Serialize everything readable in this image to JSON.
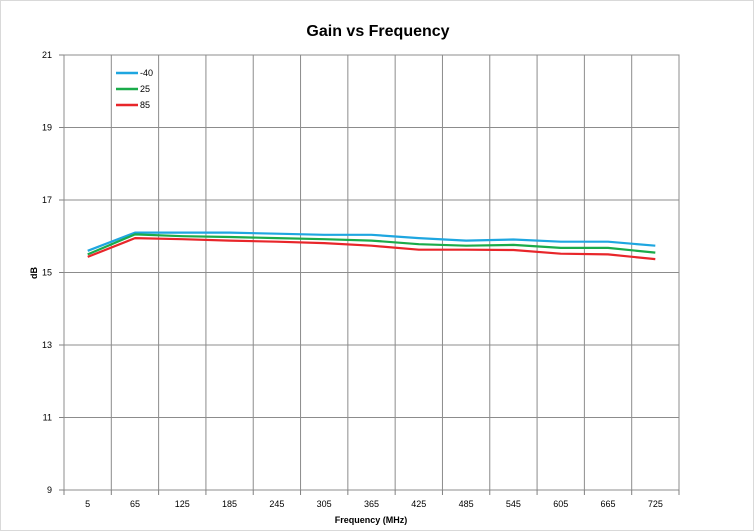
{
  "chart_data": {
    "type": "line",
    "title": "Gain vs Frequency",
    "xlabel": "Frequency (MHz)",
    "ylabel": "dB",
    "x": [
      5,
      65,
      125,
      185,
      245,
      305,
      365,
      425,
      485,
      545,
      605,
      665,
      725
    ],
    "x_tick_labels": [
      "5",
      "65",
      "125",
      "185",
      "245",
      "305",
      "365",
      "425",
      "485",
      "545",
      "605",
      "665",
      "725"
    ],
    "ylim": [
      9,
      21
    ],
    "y_ticks": [
      9,
      11,
      13,
      15,
      17,
      19,
      21
    ],
    "y_tick_labels": [
      "9",
      "11",
      "13",
      "15",
      "17",
      "19",
      "21"
    ],
    "grid": true,
    "legend_position": "top-left",
    "series": [
      {
        "name": "-40",
        "color": "#1ea6e0",
        "values": [
          15.6,
          16.1,
          16.1,
          16.1,
          16.07,
          16.04,
          16.04,
          15.95,
          15.88,
          15.91,
          15.85,
          15.85,
          15.74
        ]
      },
      {
        "name": "25",
        "color": "#1aab4a",
        "values": [
          15.5,
          16.05,
          16.0,
          15.98,
          15.95,
          15.92,
          15.88,
          15.78,
          15.74,
          15.76,
          15.68,
          15.68,
          15.55
        ]
      },
      {
        "name": "85",
        "color": "#e8262a",
        "values": [
          15.43,
          15.95,
          15.92,
          15.88,
          15.85,
          15.81,
          15.74,
          15.63,
          15.63,
          15.62,
          15.52,
          15.5,
          15.37
        ]
      }
    ]
  }
}
